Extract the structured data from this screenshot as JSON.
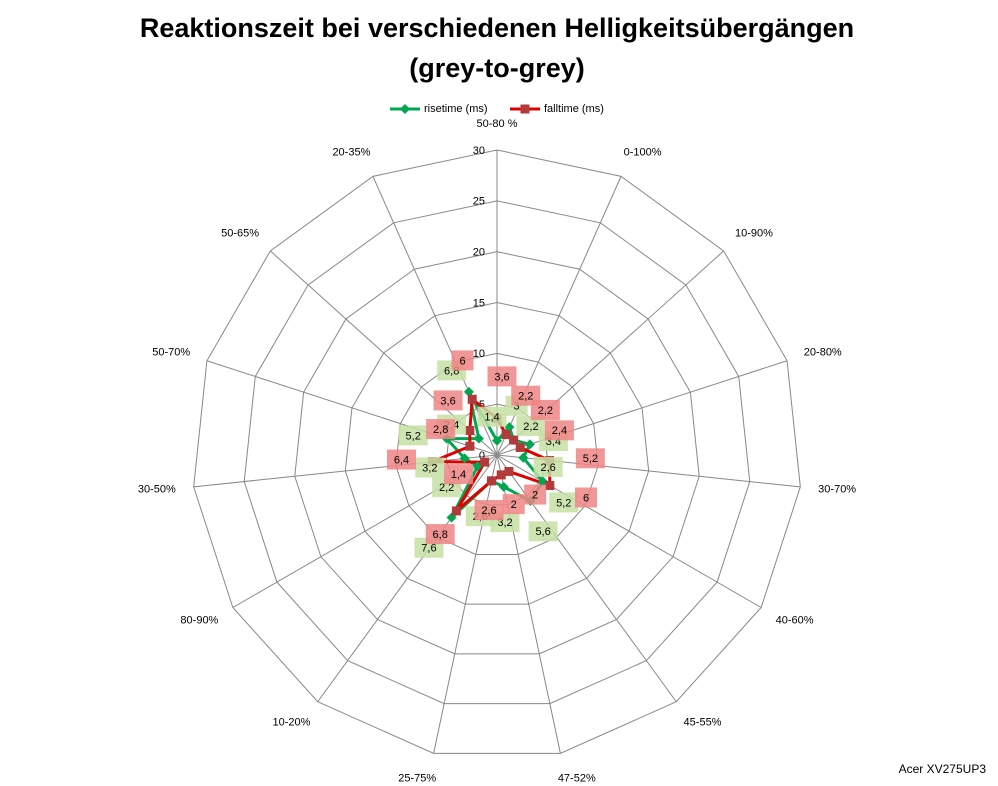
{
  "chart_data": {
    "type": "radar",
    "title": "Reaktionszeit bei verschiedenen Helligkeitsübergängen",
    "subtitle": "(grey-to-grey)",
    "annotation": "Acer XV275UP3",
    "categories": [
      "50-80 %",
      "0-100%",
      "10-90%",
      "20-80%",
      "30-70%",
      "40-60%",
      "45-55%",
      "47-52%",
      "25-75%",
      "10-20%",
      "80-90%",
      "30-50%",
      "50-70%",
      "50-65%",
      "20-35%"
    ],
    "series": [
      {
        "name": "risetime (ms)",
        "color": "#00a650",
        "label_color": "#c5e0a5",
        "values": [
          1.4,
          3,
          2.2,
          3.4,
          2.6,
          5.2,
          5.6,
          3.2,
          2.6,
          7.6,
          2.2,
          3.2,
          5.2,
          2.4,
          6.8
        ],
        "value_labels": [
          "1,4",
          "3",
          "2,2",
          "3,4",
          "2,6",
          "5,2",
          "5,6",
          "3,2",
          "2,6",
          "7,6",
          "2,2",
          "3,2",
          "5,2",
          "2,4",
          "6,8"
        ]
      },
      {
        "name": "falltime (ms)",
        "color": "#e00000",
        "marker_color": "#b23a3a",
        "label_color": "#f08585",
        "values": [
          3.6,
          2.2,
          2.2,
          2.4,
          5.2,
          6,
          2,
          2,
          2.6,
          6.8,
          1.4,
          6.4,
          2.8,
          3.6,
          6
        ],
        "value_labels": [
          "3,6",
          "2,2",
          "2,2",
          "2,4",
          "5,2",
          "6",
          "2",
          "2",
          "2,6",
          "6,8",
          "1,4",
          "6,4",
          "2,8",
          "3,6",
          "6"
        ]
      }
    ],
    "ylim": [
      0,
      30
    ],
    "yticks": [
      0,
      5,
      10,
      15,
      20,
      25,
      30
    ],
    "grid": true,
    "legend": "top"
  }
}
